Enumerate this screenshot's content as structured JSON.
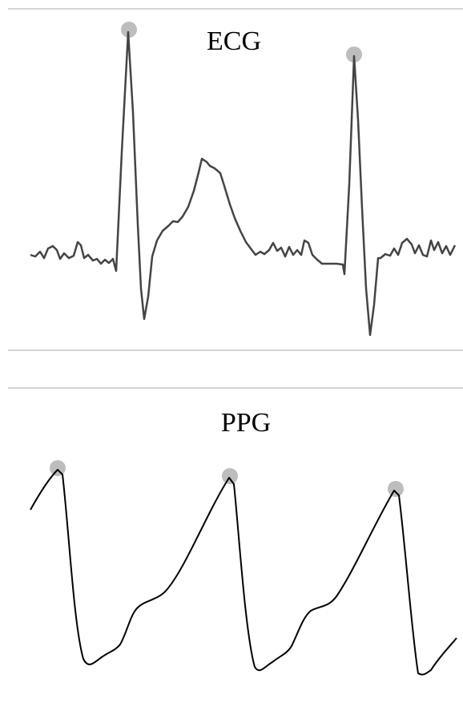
{
  "ecg": {
    "title": "ECG"
  },
  "ppg": {
    "title": "PPG"
  }
}
